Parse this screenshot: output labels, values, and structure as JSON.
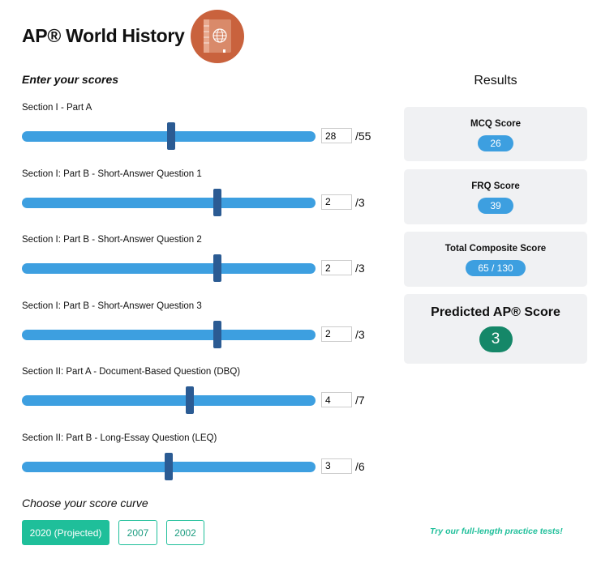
{
  "header": {
    "title": "AP® World History",
    "icon": "book-globe-icon",
    "icon_color": "#c9623d"
  },
  "inputs": {
    "heading": "Enter your scores",
    "sections": [
      {
        "label": "Section I - Part A",
        "value": "28",
        "max": "/55",
        "fraction": 0.509
      },
      {
        "label": "Section I: Part B - Short-Answer Question 1",
        "value": "2",
        "max": "/3",
        "fraction": 0.667
      },
      {
        "label": "Section I: Part B - Short-Answer Question 2",
        "value": "2",
        "max": "/3",
        "fraction": 0.667
      },
      {
        "label": "Section I: Part B - Short-Answer Question 3",
        "value": "2",
        "max": "/3",
        "fraction": 0.667
      },
      {
        "label": "Section II: Part A - Document-Based Question (DBQ)",
        "value": "4",
        "max": "/7",
        "fraction": 0.571
      },
      {
        "label": "Section II: Part B - Long-Essay Question (LEQ)",
        "value": "3",
        "max": "/6",
        "fraction": 0.5
      }
    ]
  },
  "results": {
    "heading": "Results",
    "mcq_label": "MCQ Score",
    "mcq": "26",
    "frq_label": "FRQ Score",
    "frq": "39",
    "total_label": "Total Composite Score",
    "total": "65 / 130",
    "ap_label": "Predicted AP® Score",
    "ap": "3"
  },
  "curve": {
    "heading": "Choose your score curve",
    "options": [
      "2020 (Projected)",
      "2007",
      "2002"
    ],
    "selected": "2020 (Projected)"
  },
  "practice_link": "Try our full-length practice tests!",
  "colors": {
    "accent": "#3d9fe0",
    "thumb": "#2b5b93",
    "teal": "#1fbf9a",
    "ap_badge": "#158768"
  }
}
